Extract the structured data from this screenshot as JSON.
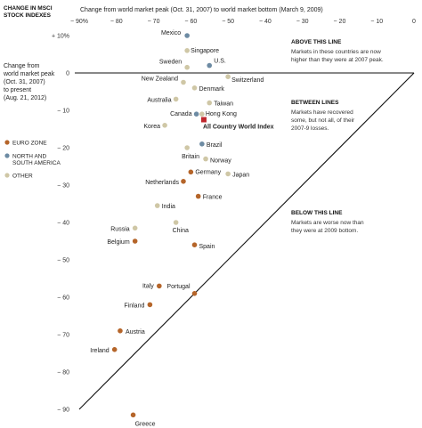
{
  "header": {
    "x_title": "Change from world market peak (Oct. 31, 2007) to world market bottom (March 9, 2009)",
    "left_title_lines": [
      "CHANGE IN MSCI",
      "STOCK INDEXES"
    ],
    "y_title_lines": [
      "Change from",
      "world market peak",
      "(Oct. 31, 2007)",
      "to present",
      "(Aug. 21, 2012)"
    ]
  },
  "legend": [
    {
      "label": "EURO ZONE",
      "color": "#b5652a"
    },
    {
      "label": "NORTH AND SOUTH AMERICA",
      "label_lines": [
        "NORTH AND",
        "SOUTH AMERICA"
      ],
      "color": "#6d8ba3"
    },
    {
      "label": "OTHER",
      "color": "#cfc7a6"
    }
  ],
  "annotations": [
    {
      "title": "ABOVE THIS LINE",
      "lines": [
        "Markets in these countries are now",
        "higher than they were at 2007 peak."
      ]
    },
    {
      "title": "BETWEEN LINES",
      "lines": [
        "Markets have recovered",
        "some, but not all, of their",
        "2007-9 losses."
      ]
    },
    {
      "title": "BELOW THIS LINE",
      "lines": [
        "Markets are worse now than",
        "they were at 2009 bottom."
      ]
    }
  ],
  "chart_data": {
    "type": "scatter",
    "title": "",
    "xlabel": "Change from world market peak (Oct. 31, 2007) to world market bottom (March 9, 2009)",
    "ylabel": "Change from world market peak (Oct. 31, 2007) to present (Aug. 21, 2012)",
    "xlim": [
      -90,
      0
    ],
    "ylim": [
      -90,
      10
    ],
    "x_ticks": [
      "− 90%",
      "− 80",
      "− 70",
      "− 60",
      "− 50",
      "− 40",
      "− 30",
      "− 20",
      "− 10",
      "0"
    ],
    "y_ticks": [
      "+ 10%",
      "0",
      "− 10",
      "− 20",
      "− 30",
      "− 40",
      "− 50",
      "− 60",
      "− 70",
      "− 80",
      "− 90"
    ],
    "grid": false,
    "reference_lines": [
      "y = 0",
      "y = x"
    ],
    "colors": {
      "euro": "#b5652a",
      "americas": "#6d8ba3",
      "other": "#cfc7a6",
      "world": "#c0272d"
    },
    "points": [
      {
        "name": "Mexico",
        "x": -61,
        "y": 10,
        "group": "americas"
      },
      {
        "name": "Singapore",
        "x": -61,
        "y": 6,
        "group": "other"
      },
      {
        "name": "Sweden",
        "x": -61,
        "y": 1.5,
        "group": "other"
      },
      {
        "name": "U.S.",
        "x": -55,
        "y": 2,
        "group": "americas"
      },
      {
        "name": "Switzerland",
        "x": -50,
        "y": -1,
        "group": "other"
      },
      {
        "name": "New Zealand",
        "x": -62,
        "y": -2.5,
        "group": "other"
      },
      {
        "name": "Denmark",
        "x": -59,
        "y": -4,
        "group": "other"
      },
      {
        "name": "Australia",
        "x": -64,
        "y": -7,
        "group": "other"
      },
      {
        "name": "Taiwan",
        "x": -55,
        "y": -8,
        "group": "other"
      },
      {
        "name": "Canada",
        "x": -58.5,
        "y": -11,
        "group": "americas"
      },
      {
        "name": "Hong Kong",
        "x": -57,
        "y": -11,
        "group": "other"
      },
      {
        "name": "Korea",
        "x": -67,
        "y": -14,
        "group": "other"
      },
      {
        "name": "All Country World Index",
        "x": -56.5,
        "y": -12.5,
        "group": "world"
      },
      {
        "name": "Brazil",
        "x": -57,
        "y": -19,
        "group": "americas"
      },
      {
        "name": "Britain",
        "x": -61,
        "y": -20,
        "group": "other"
      },
      {
        "name": "Norway",
        "x": -56,
        "y": -23,
        "group": "other"
      },
      {
        "name": "Germany",
        "x": -60,
        "y": -26.5,
        "group": "euro"
      },
      {
        "name": "Japan",
        "x": -50,
        "y": -27,
        "group": "other"
      },
      {
        "name": "Netherlands",
        "x": -62,
        "y": -29,
        "group": "euro"
      },
      {
        "name": "France",
        "x": -58,
        "y": -33,
        "group": "euro"
      },
      {
        "name": "India",
        "x": -69,
        "y": -35.5,
        "group": "other"
      },
      {
        "name": "China",
        "x": -64,
        "y": -40,
        "group": "other"
      },
      {
        "name": "Russia",
        "x": -75,
        "y": -41.5,
        "group": "other"
      },
      {
        "name": "Belgium",
        "x": -75,
        "y": -45,
        "group": "euro"
      },
      {
        "name": "Spain",
        "x": -59,
        "y": -46,
        "group": "euro"
      },
      {
        "name": "Italy",
        "x": -68.5,
        "y": -57,
        "group": "euro"
      },
      {
        "name": "Portugal",
        "x": -59,
        "y": -59,
        "group": "euro"
      },
      {
        "name": "Finland",
        "x": -71,
        "y": -62,
        "group": "euro"
      },
      {
        "name": "Austria",
        "x": -79,
        "y": -69,
        "group": "euro"
      },
      {
        "name": "Ireland",
        "x": -80.5,
        "y": -74,
        "group": "euro"
      },
      {
        "name": "Greece",
        "x": -75.5,
        "y": -91.5,
        "group": "euro"
      }
    ]
  }
}
